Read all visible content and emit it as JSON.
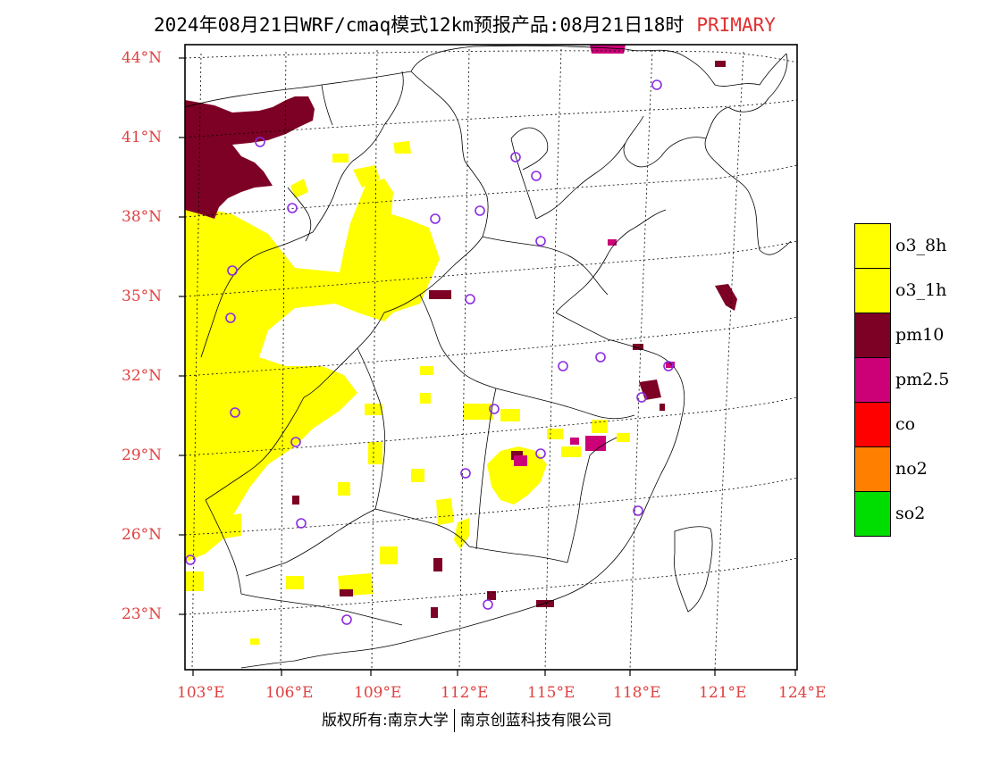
{
  "title": {
    "text": "2024年08月21日WRF/cmaq模式12km预报产品:08月21日18时",
    "tag": "PRIMARY"
  },
  "latitude_labels": [
    "44°N",
    "41°N",
    "38°N",
    "35°N",
    "32°N",
    "29°N",
    "26°N",
    "23°N"
  ],
  "longitude_labels": [
    "103°E",
    "106°E",
    "109°E",
    "112°E",
    "115°E",
    "118°E",
    "121°E",
    "124°E"
  ],
  "legend": [
    {
      "label": "o3_8h",
      "color": "#ffff00"
    },
    {
      "label": "o3_1h",
      "color": "#ffff00"
    },
    {
      "label": "pm10",
      "color": "#7d0025"
    },
    {
      "label": "pm2.5",
      "color": "#cc0077"
    },
    {
      "label": "co",
      "color": "#ff0000"
    },
    {
      "label": "no2",
      "color": "#ff8000"
    },
    {
      "label": "so2",
      "color": "#00dd00"
    }
  ],
  "footer": {
    "left": "版权所有:南京大学",
    "right": "南京创蓝科技有限公司"
  },
  "colors": {
    "axis_label": "#e04040",
    "station_marker": "#8a2be2"
  }
}
